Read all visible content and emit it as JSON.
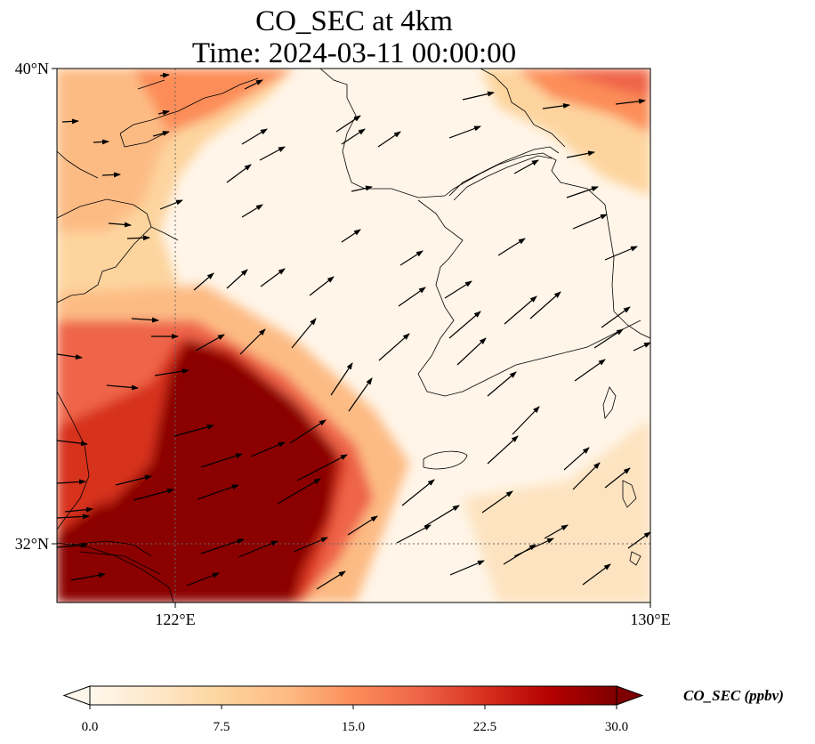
{
  "title": {
    "line1": "CO_SEC at 4km",
    "line2": "Time: 2024-03-11 00:00:00"
  },
  "map": {
    "lon_range": [
      120,
      130
    ],
    "lat_range": [
      31,
      40
    ],
    "lat_ticks": [
      {
        "value": 40,
        "label": "40°N"
      },
      {
        "value": 32,
        "label": "32°N"
      }
    ],
    "lon_ticks": [
      {
        "value": 122,
        "label": "122°E"
      },
      {
        "value": 130,
        "label": "130°E"
      }
    ],
    "gridlines": "dotted",
    "coastline_color": "#000000",
    "wind_vectors": "black arrows, prevailing westerly to southwesterly flow"
  },
  "colorbar": {
    "label": "CO_SEC (ppbv)",
    "min": 0.0,
    "max": 30.0,
    "ticks": [
      "0.0",
      "7.5",
      "15.0",
      "22.5",
      "30.0"
    ],
    "colormap": "OrRd",
    "extend": "both",
    "colors": [
      "#fff7ec",
      "#fee8c8",
      "#fdd49e",
      "#fdbb84",
      "#fc8d59",
      "#ef6548",
      "#d7301f",
      "#b30000",
      "#7f0000"
    ]
  }
}
